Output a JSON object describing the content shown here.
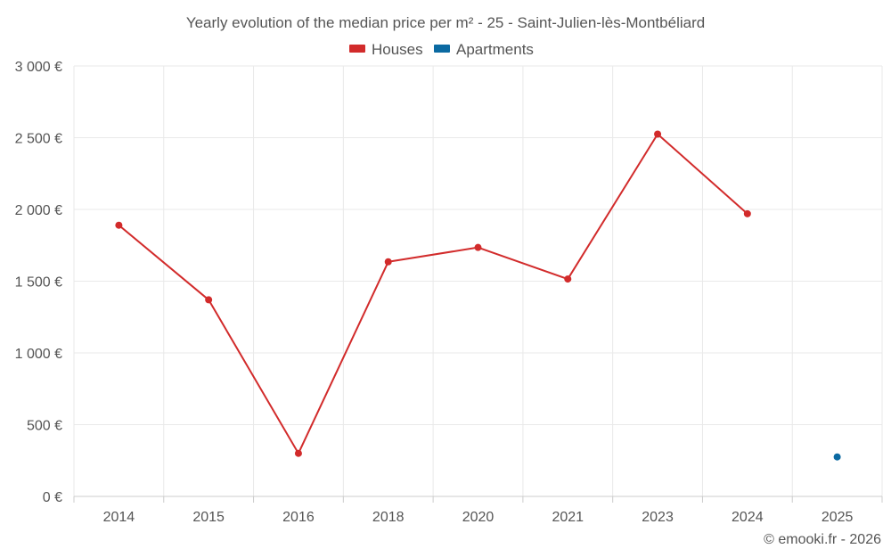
{
  "chart_data": {
    "type": "line",
    "title": "Yearly evolution of the median price per m² - 25 - Saint-Julien-lès-Montbéliard",
    "categories": [
      "2014",
      "2015",
      "2016",
      "2018",
      "2020",
      "2021",
      "2023",
      "2024",
      "2025"
    ],
    "ylim": [
      0,
      3000
    ],
    "yticks": [
      0,
      500,
      1000,
      1500,
      2000,
      2500,
      3000
    ],
    "ytick_labels": [
      "0 €",
      "500 €",
      "1 000 €",
      "1 500 €",
      "2 000 €",
      "2 500 €",
      "3 000 €"
    ],
    "grid": true,
    "legend_position": "top-center",
    "series": [
      {
        "name": "Houses",
        "color": "#d22b2b",
        "values": [
          1890,
          1370,
          300,
          1635,
          1735,
          1515,
          2525,
          1970,
          null
        ]
      },
      {
        "name": "Apartments",
        "color": "#0b6aa2",
        "values": [
          null,
          null,
          null,
          null,
          null,
          null,
          null,
          null,
          275
        ]
      }
    ]
  },
  "credit": "© emooki.fr - 2026"
}
